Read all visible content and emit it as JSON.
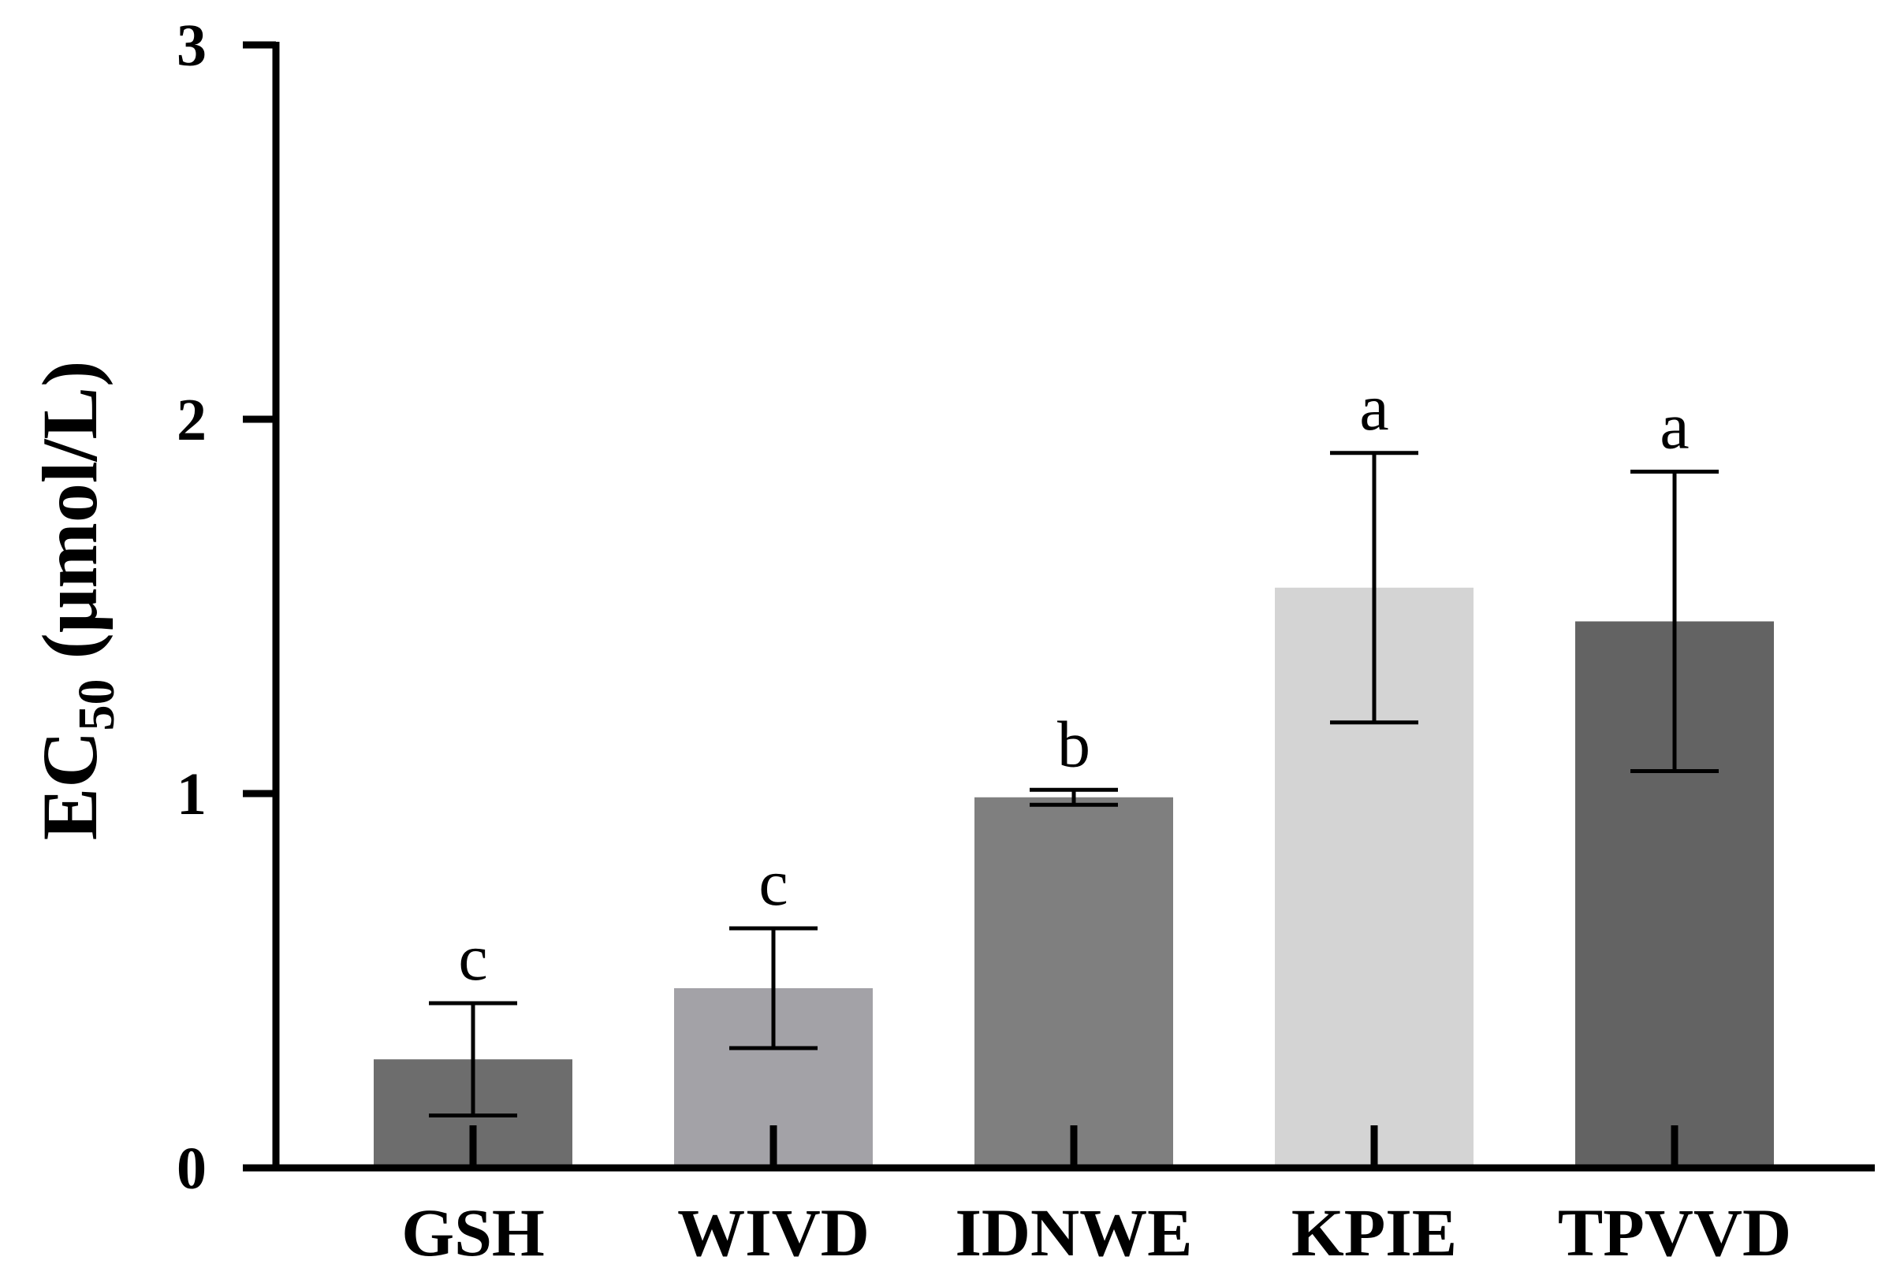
{
  "chart_data": {
    "type": "bar",
    "title": "",
    "xlabel": "",
    "ylabel": {
      "main": "EC",
      "subscript": "50",
      "unit": " (μmol/L)"
    },
    "ylim": [
      0,
      3
    ],
    "yticks": [
      "0",
      "1",
      "2",
      "3"
    ],
    "grid": false,
    "categories": [
      "GSH",
      "WIVD",
      "IDNWE",
      "KPIE",
      "TPVVD"
    ],
    "values": [
      0.29,
      0.48,
      0.99,
      1.55,
      1.46
    ],
    "errors": [
      0.15,
      0.16,
      0.02,
      0.36,
      0.4
    ],
    "significance": [
      "c",
      "c",
      "b",
      "a",
      "a"
    ],
    "colors": [
      "#6d6d6d",
      "#a3a2a7",
      "#7f7f7f",
      "#d4d4d4",
      "#636363"
    ]
  }
}
